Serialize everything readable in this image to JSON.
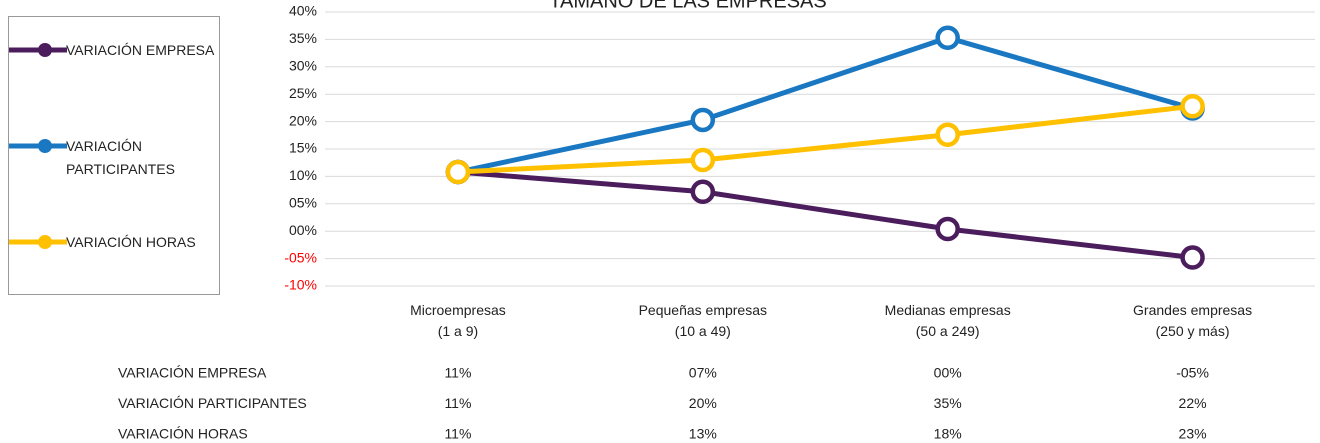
{
  "chart_data": {
    "type": "line",
    "title": "TAMAÑO DE LAS EMPRESAS",
    "categories": [
      "Microempresas\n(1 a 9)",
      "Pequeñas empresas\n(10 a 49)",
      "Medianas empresas\n(50 a 249)",
      "Grandes empresas\n(250 y más)"
    ],
    "series": [
      {
        "name": "VARIACIÓN EMPRESA",
        "color": "#4b1d5c",
        "values": [
          10.8,
          7.2,
          0.4,
          -4.8
        ],
        "value_labels": [
          "11%",
          "07%",
          "00%",
          "-05%"
        ]
      },
      {
        "name": "VARIACIÓN PARTICIPANTES",
        "color": "#1a78c2",
        "values": [
          10.8,
          20.3,
          35.3,
          22.4
        ],
        "value_labels": [
          "11%",
          "20%",
          "35%",
          "22%"
        ]
      },
      {
        "name": "VARIACIÓN HORAS",
        "color": "#ffc000",
        "values": [
          10.8,
          13,
          17.6,
          22.8
        ],
        "value_labels": [
          "11%",
          "13%",
          "18%",
          "23%"
        ]
      }
    ],
    "ylim": [
      -10,
      40
    ],
    "yticks": [
      {
        "value": -10,
        "label": "-10%"
      },
      {
        "value": -5,
        "label": "-05%"
      },
      {
        "value": 0,
        "label": "00%"
      },
      {
        "value": 5,
        "label": "05%"
      },
      {
        "value": 10,
        "label": "10%"
      },
      {
        "value": 15,
        "label": "15%"
      },
      {
        "value": 20,
        "label": "20%"
      },
      {
        "value": 25,
        "label": "25%"
      },
      {
        "value": 30,
        "label": "30%"
      },
      {
        "value": 35,
        "label": "35%"
      },
      {
        "value": 40,
        "label": "40%"
      }
    ],
    "negative_tick_color": "#ff0000",
    "grid": true,
    "legend": "left",
    "data_table": true
  }
}
